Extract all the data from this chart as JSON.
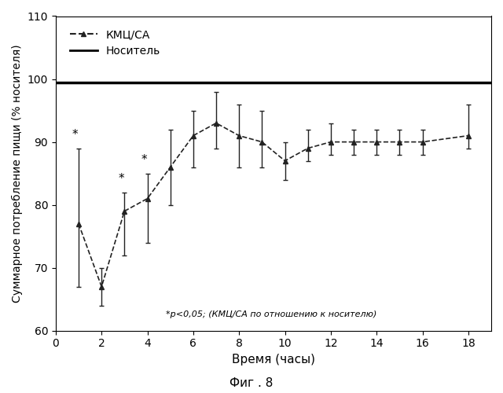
{
  "x": [
    1,
    2,
    3,
    4,
    5,
    6,
    7,
    8,
    9,
    10,
    11,
    12,
    13,
    14,
    15,
    16,
    18
  ],
  "y_kmts": [
    77,
    67,
    79,
    81,
    86,
    91,
    93,
    91,
    90,
    87,
    89,
    90,
    90,
    90,
    90,
    90,
    91
  ],
  "y_err_low": [
    10,
    3,
    7,
    7,
    6,
    5,
    4,
    5,
    4,
    3,
    2,
    2,
    2,
    2,
    2,
    2,
    2
  ],
  "y_err_high": [
    12,
    3,
    3,
    4,
    6,
    4,
    5,
    5,
    5,
    3,
    3,
    3,
    2,
    2,
    2,
    2,
    5
  ],
  "y_carrier": 99.5,
  "sig_points": [
    1,
    3,
    4
  ],
  "ylabel": "Суммарное потребление пищи (% носителя)",
  "xlabel": "Время (часы)",
  "legend_kmts": "КМЦ/СА",
  "legend_carrier": "Носитель",
  "annotation": "*p<0,05; (КМЦ/СА по отношению к носителю)",
  "caption": "Фиг . 8",
  "ylim": [
    60,
    110
  ],
  "yticks": [
    60,
    70,
    80,
    90,
    100,
    110
  ],
  "xticks": [
    0,
    2,
    4,
    6,
    8,
    10,
    12,
    14,
    16,
    18
  ],
  "bg_color": "#ffffff",
  "line_color": "#333333"
}
